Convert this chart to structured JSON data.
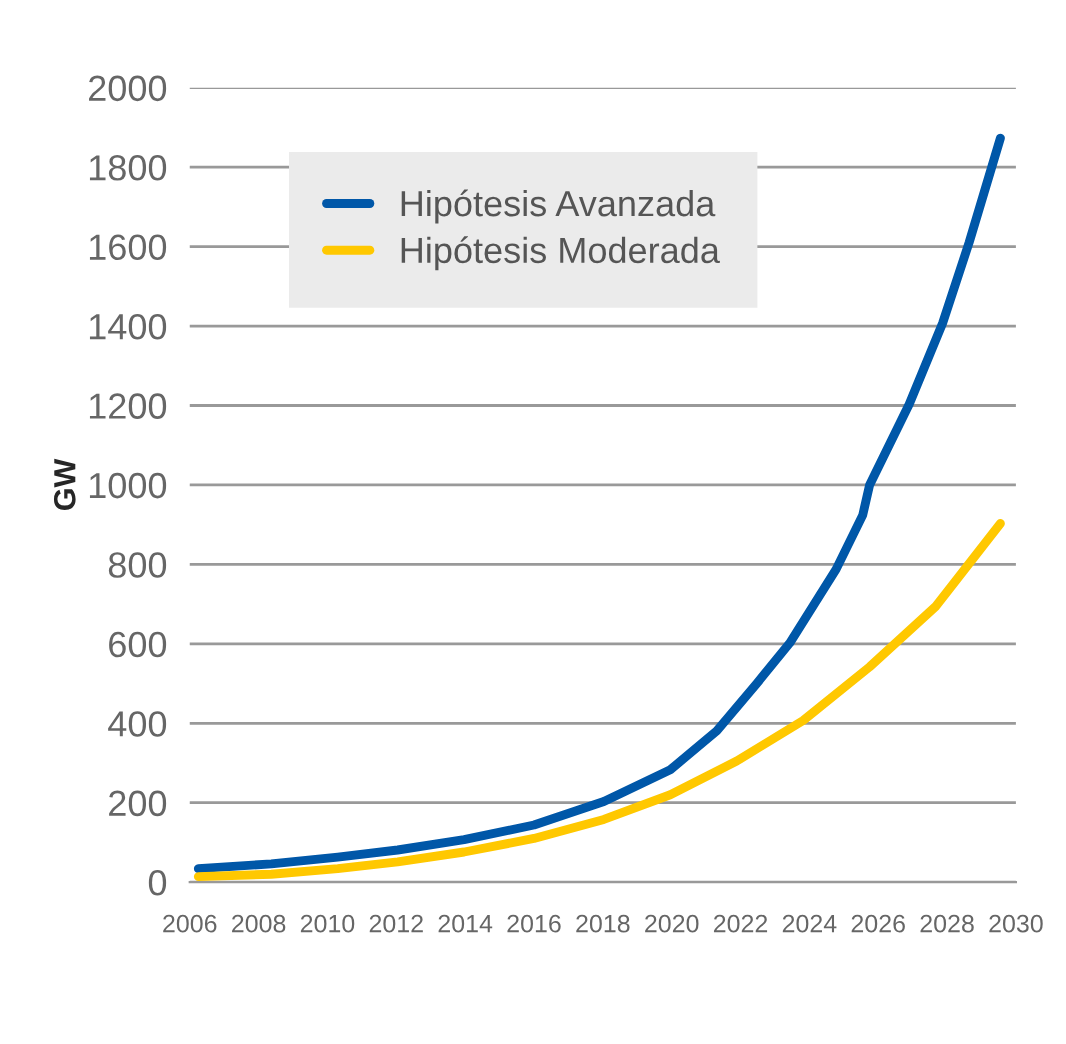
{
  "chart_data": {
    "type": "line",
    "ylabel": "GW",
    "xlim": [
      2006,
      2030
    ],
    "xticks": [
      2006,
      2008,
      2010,
      2012,
      2014,
      2016,
      2018,
      2020,
      2022,
      2024,
      2026,
      2028,
      2030
    ],
    "ylim": [
      0,
      2000
    ],
    "yticks": [
      0,
      200,
      400,
      600,
      800,
      1000,
      1200,
      1400,
      1600,
      1800,
      2000
    ],
    "grid": "y",
    "legend": "top left",
    "line_style": "solid",
    "marker": "none",
    "series": [
      {
        "name": "Hipótesis Avanzada",
        "color": "#0057a8",
        "x": [
          2006.25,
          2008.37,
          2010.3,
          2012.04,
          2013.97,
          2016.0,
          2018.03,
          2019.96,
          2021.31,
          2022.47,
          2023.43,
          2024.78,
          2025.55,
          2025.75,
          2026.9,
          2027.87,
          2028.64,
          2029.55
        ],
        "values": [
          34,
          46,
          63,
          81,
          107,
          144,
          203,
          283,
          381,
          500,
          602,
          788,
          924,
          1000,
          1203,
          1407,
          1610,
          1873
        ]
      },
      {
        "name": "Hipótesis Moderada",
        "color": "#ffc800",
        "x": [
          2006.25,
          2008.37,
          2010.3,
          2012.04,
          2013.97,
          2016.0,
          2018.03,
          2019.96,
          2021.89,
          2023.82,
          2025.75,
          2027.68,
          2029.55
        ],
        "values": [
          14,
          20,
          34,
          51,
          76,
          110,
          158,
          220,
          305,
          407,
          542,
          695,
          903
        ]
      }
    ]
  }
}
